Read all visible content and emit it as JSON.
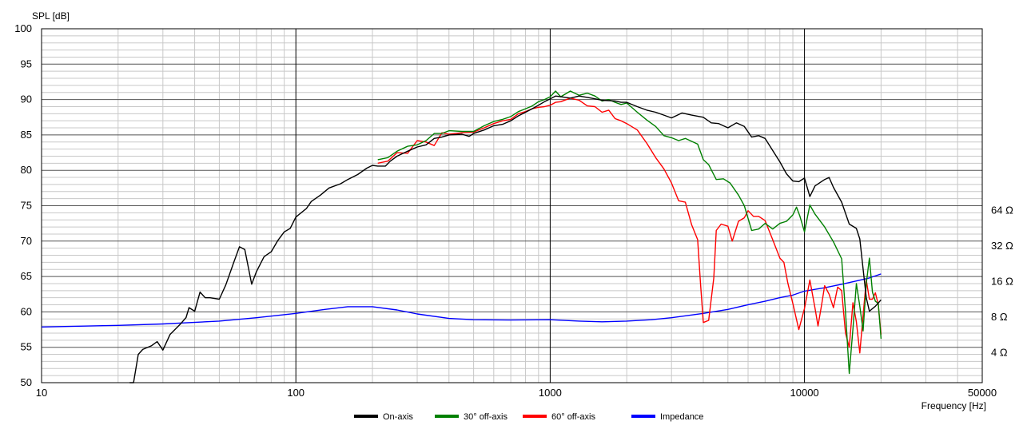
{
  "chart_data": {
    "type": "line",
    "title": "",
    "ylabel": "SPL [dB]",
    "xlabel": "Frequency [Hz]",
    "x_scale": "log",
    "xlim": [
      10,
      50000
    ],
    "ylim": [
      50,
      100
    ],
    "x_ticks": [
      {
        "value": 10,
        "label": "10"
      },
      {
        "value": 100,
        "label": "100"
      },
      {
        "value": 1000,
        "label": "1000"
      },
      {
        "value": 10000,
        "label": "10000"
      },
      {
        "value": 50000,
        "label": "50000"
      }
    ],
    "y_ticks": [
      {
        "value": 50,
        "label": "50"
      },
      {
        "value": 55,
        "label": "55"
      },
      {
        "value": 60,
        "label": "60"
      },
      {
        "value": 65,
        "label": "65"
      },
      {
        "value": 70,
        "label": "70"
      },
      {
        "value": 75,
        "label": "75"
      },
      {
        "value": 80,
        "label": "80"
      },
      {
        "value": 85,
        "label": "85"
      },
      {
        "value": 90,
        "label": "90"
      },
      {
        "value": 95,
        "label": "95"
      },
      {
        "value": 100,
        "label": "100"
      }
    ],
    "y2_scale": "log",
    "y2_ticks": [
      {
        "value": 4,
        "label": "4 Ω"
      },
      {
        "value": 8,
        "label": "8 Ω"
      },
      {
        "value": 16,
        "label": "16 Ω"
      },
      {
        "value": 32,
        "label": "32 Ω"
      },
      {
        "value": 64,
        "label": "64 Ω"
      }
    ],
    "grid": true,
    "legend_position": "bottom-center",
    "series": [
      {
        "name": "On-axis",
        "color": "#000000",
        "points": [
          [
            22.2,
            50
          ],
          [
            23,
            50
          ],
          [
            24,
            54
          ],
          [
            25,
            54.7
          ],
          [
            27,
            55.2
          ],
          [
            28.5,
            55.8
          ],
          [
            30,
            54.6
          ],
          [
            32,
            56.8
          ],
          [
            35,
            58.2
          ],
          [
            37,
            59.2
          ],
          [
            38,
            60.6
          ],
          [
            40,
            60.1
          ],
          [
            42,
            62.8
          ],
          [
            44,
            62
          ],
          [
            46,
            62
          ],
          [
            50,
            61.8
          ],
          [
            53,
            63.8
          ],
          [
            57,
            67
          ],
          [
            60,
            69.2
          ],
          [
            63,
            68.8
          ],
          [
            67,
            63.9
          ],
          [
            70,
            65.7
          ],
          [
            75,
            67.8
          ],
          [
            80,
            68.5
          ],
          [
            85,
            70.1
          ],
          [
            90,
            71.3
          ],
          [
            95,
            71.8
          ],
          [
            100,
            73.4
          ],
          [
            110,
            74.6
          ],
          [
            115,
            75.6
          ],
          [
            125,
            76.5
          ],
          [
            135,
            77.5
          ],
          [
            150,
            78.1
          ],
          [
            160,
            78.7
          ],
          [
            175,
            79.4
          ],
          [
            190,
            80.3
          ],
          [
            200,
            80.7
          ],
          [
            210,
            80.6
          ],
          [
            225,
            80.6
          ],
          [
            235,
            81.3
          ],
          [
            250,
            82
          ],
          [
            275,
            82.7
          ],
          [
            300,
            83.3
          ],
          [
            325,
            83.6
          ],
          [
            350,
            84.5
          ],
          [
            375,
            84.7
          ],
          [
            400,
            85
          ],
          [
            450,
            85.1
          ],
          [
            480,
            84.8
          ],
          [
            500,
            85.2
          ],
          [
            550,
            85.7
          ],
          [
            600,
            86.3
          ],
          [
            650,
            86.5
          ],
          [
            700,
            87
          ],
          [
            750,
            87.7
          ],
          [
            800,
            88.2
          ],
          [
            850,
            88.7
          ],
          [
            900,
            89.2
          ],
          [
            950,
            89.7
          ],
          [
            1000,
            90.1
          ],
          [
            1050,
            90.5
          ],
          [
            1100,
            90.4
          ],
          [
            1200,
            90.2
          ],
          [
            1300,
            90.5
          ],
          [
            1400,
            90.3
          ],
          [
            1500,
            90.1
          ],
          [
            1600,
            89.9
          ],
          [
            1800,
            89.8
          ],
          [
            1900,
            89.6
          ],
          [
            2000,
            89.6
          ],
          [
            2200,
            89
          ],
          [
            2400,
            88.5
          ],
          [
            2600,
            88.2
          ],
          [
            2800,
            87.8
          ],
          [
            3000,
            87.4
          ],
          [
            3300,
            88.1
          ],
          [
            3600,
            87.8
          ],
          [
            4000,
            87.5
          ],
          [
            4300,
            86.7
          ],
          [
            4600,
            86.6
          ],
          [
            5000,
            86
          ],
          [
            5400,
            86.7
          ],
          [
            5800,
            86.2
          ],
          [
            6200,
            84.7
          ],
          [
            6600,
            84.9
          ],
          [
            7000,
            84.5
          ],
          [
            7500,
            82.8
          ],
          [
            8000,
            81.2
          ],
          [
            8500,
            79.5
          ],
          [
            9000,
            78.5
          ],
          [
            9500,
            78.4
          ],
          [
            10000,
            78.9
          ],
          [
            10500,
            76.3
          ],
          [
            11000,
            77.8
          ],
          [
            12000,
            78.7
          ],
          [
            12500,
            79
          ],
          [
            13000,
            77.6
          ],
          [
            14000,
            75.5
          ],
          [
            15000,
            72.4
          ],
          [
            16000,
            71.8
          ],
          [
            16500,
            70.3
          ],
          [
            17000,
            66.1
          ],
          [
            17500,
            62
          ],
          [
            18000,
            60.1
          ],
          [
            19000,
            60.8
          ],
          [
            20000,
            61.7
          ]
        ]
      },
      {
        "name": "30° off-axis",
        "color": "#008000",
        "points": [
          [
            210,
            81.5
          ],
          [
            230,
            81.8
          ],
          [
            250,
            82.7
          ],
          [
            275,
            83.4
          ],
          [
            300,
            83.6
          ],
          [
            325,
            84.2
          ],
          [
            350,
            85.2
          ],
          [
            375,
            85.2
          ],
          [
            400,
            85.6
          ],
          [
            450,
            85.5
          ],
          [
            500,
            85.5
          ],
          [
            550,
            86.3
          ],
          [
            600,
            86.9
          ],
          [
            650,
            87.2
          ],
          [
            700,
            87.6
          ],
          [
            750,
            88.3
          ],
          [
            800,
            88.7
          ],
          [
            850,
            89.1
          ],
          [
            900,
            89.7
          ],
          [
            950,
            90
          ],
          [
            1000,
            90.4
          ],
          [
            1050,
            91.2
          ],
          [
            1100,
            90.4
          ],
          [
            1150,
            90.8
          ],
          [
            1200,
            91.2
          ],
          [
            1300,
            90.6
          ],
          [
            1400,
            90.9
          ],
          [
            1500,
            90.5
          ],
          [
            1600,
            89.8
          ],
          [
            1700,
            90
          ],
          [
            1800,
            89.6
          ],
          [
            1900,
            89.3
          ],
          [
            2000,
            89.5
          ],
          [
            2200,
            88.2
          ],
          [
            2400,
            87.1
          ],
          [
            2600,
            86.2
          ],
          [
            2800,
            84.9
          ],
          [
            3000,
            84.6
          ],
          [
            3200,
            84.2
          ],
          [
            3400,
            84.5
          ],
          [
            3800,
            83.7
          ],
          [
            4000,
            81.5
          ],
          [
            4200,
            80.8
          ],
          [
            4500,
            78.7
          ],
          [
            4800,
            78.8
          ],
          [
            5100,
            78.2
          ],
          [
            5500,
            76.5
          ],
          [
            5800,
            75
          ],
          [
            6200,
            71.5
          ],
          [
            6600,
            71.7
          ],
          [
            7000,
            72.5
          ],
          [
            7500,
            71.7
          ],
          [
            8000,
            72.5
          ],
          [
            8500,
            72.8
          ],
          [
            9000,
            73.7
          ],
          [
            9300,
            74.8
          ],
          [
            9600,
            73.5
          ],
          [
            10000,
            71.3
          ],
          [
            10500,
            75.1
          ],
          [
            11000,
            73.8
          ],
          [
            12000,
            72
          ],
          [
            13000,
            69.9
          ],
          [
            14000,
            67.5
          ],
          [
            14500,
            60
          ],
          [
            15000,
            51.3
          ],
          [
            15500,
            57.6
          ],
          [
            16000,
            64
          ],
          [
            16500,
            60.8
          ],
          [
            17000,
            57.3
          ],
          [
            17500,
            64
          ],
          [
            18000,
            67.6
          ],
          [
            18500,
            62.8
          ],
          [
            19000,
            61.5
          ],
          [
            19500,
            61.2
          ],
          [
            20000,
            56.2
          ]
        ]
      },
      {
        "name": "60° off-axis",
        "color": "#ff0000",
        "points": [
          [
            210,
            81
          ],
          [
            230,
            81.3
          ],
          [
            250,
            82.5
          ],
          [
            275,
            82.4
          ],
          [
            300,
            84.2
          ],
          [
            325,
            84
          ],
          [
            350,
            83.5
          ],
          [
            375,
            85.3
          ],
          [
            400,
            85.1
          ],
          [
            450,
            85.3
          ],
          [
            500,
            85.4
          ],
          [
            550,
            86
          ],
          [
            600,
            86.6
          ],
          [
            650,
            87
          ],
          [
            700,
            87.2
          ],
          [
            750,
            88
          ],
          [
            800,
            88.3
          ],
          [
            850,
            88.7
          ],
          [
            900,
            88.9
          ],
          [
            950,
            89
          ],
          [
            1000,
            89.2
          ],
          [
            1050,
            89.6
          ],
          [
            1100,
            89.7
          ],
          [
            1200,
            90.2
          ],
          [
            1300,
            89.9
          ],
          [
            1400,
            89.1
          ],
          [
            1500,
            89
          ],
          [
            1600,
            88.2
          ],
          [
            1700,
            88.5
          ],
          [
            1800,
            87.3
          ],
          [
            1900,
            87
          ],
          [
            2000,
            86.6
          ],
          [
            2200,
            85.7
          ],
          [
            2400,
            83.8
          ],
          [
            2600,
            81.8
          ],
          [
            2800,
            80.2
          ],
          [
            3000,
            78.2
          ],
          [
            3200,
            75.7
          ],
          [
            3400,
            75.5
          ],
          [
            3600,
            72.3
          ],
          [
            3800,
            70.2
          ],
          [
            3900,
            64
          ],
          [
            4000,
            58.5
          ],
          [
            4200,
            58.8
          ],
          [
            4400,
            64.8
          ],
          [
            4500,
            71.5
          ],
          [
            4700,
            72.4
          ],
          [
            5000,
            72.1
          ],
          [
            5200,
            70
          ],
          [
            5500,
            72.8
          ],
          [
            5800,
            73.3
          ],
          [
            6000,
            74.3
          ],
          [
            6300,
            73.5
          ],
          [
            6600,
            73.5
          ],
          [
            7000,
            72.9
          ],
          [
            7500,
            70.2
          ],
          [
            8000,
            67.6
          ],
          [
            8300,
            67
          ],
          [
            8600,
            64.1
          ],
          [
            9000,
            61.2
          ],
          [
            9500,
            57.5
          ],
          [
            10000,
            60.5
          ],
          [
            10500,
            64.5
          ],
          [
            11000,
            60.5
          ],
          [
            11300,
            58
          ],
          [
            11700,
            61.2
          ],
          [
            12000,
            63.7
          ],
          [
            12500,
            62.5
          ],
          [
            13000,
            60.6
          ],
          [
            13500,
            63.5
          ],
          [
            14000,
            63
          ],
          [
            14500,
            57
          ],
          [
            15000,
            55
          ],
          [
            15500,
            61.3
          ],
          [
            16000,
            58.6
          ],
          [
            16500,
            54.2
          ],
          [
            17000,
            59.5
          ],
          [
            17500,
            64.5
          ],
          [
            18000,
            61.8
          ],
          [
            18500,
            61.8
          ],
          [
            19000,
            62.7
          ],
          [
            19500,
            61
          ],
          [
            20000,
            56.8
          ]
        ]
      },
      {
        "name": "Impedance",
        "color": "#0000ff",
        "axis": "y2",
        "points": [
          [
            10,
            6.6
          ],
          [
            20,
            6.8
          ],
          [
            30,
            7
          ],
          [
            50,
            7.4
          ],
          [
            70,
            7.9
          ],
          [
            100,
            8.6
          ],
          [
            130,
            9.3
          ],
          [
            160,
            9.8
          ],
          [
            200,
            9.8
          ],
          [
            250,
            9.2
          ],
          [
            300,
            8.5
          ],
          [
            400,
            7.8
          ],
          [
            500,
            7.6
          ],
          [
            700,
            7.55
          ],
          [
            1000,
            7.6
          ],
          [
            1300,
            7.4
          ],
          [
            1600,
            7.3
          ],
          [
            2000,
            7.4
          ],
          [
            2500,
            7.6
          ],
          [
            3000,
            7.9
          ],
          [
            4000,
            8.6
          ],
          [
            5000,
            9.3
          ],
          [
            6000,
            10.2
          ],
          [
            7000,
            10.9
          ],
          [
            8000,
            11.7
          ],
          [
            9000,
            12.3
          ],
          [
            10000,
            13.3
          ],
          [
            12000,
            14.2
          ],
          [
            14000,
            15.2
          ],
          [
            16000,
            16.2
          ],
          [
            18000,
            17.2
          ],
          [
            20000,
            18.6
          ]
        ]
      }
    ]
  }
}
